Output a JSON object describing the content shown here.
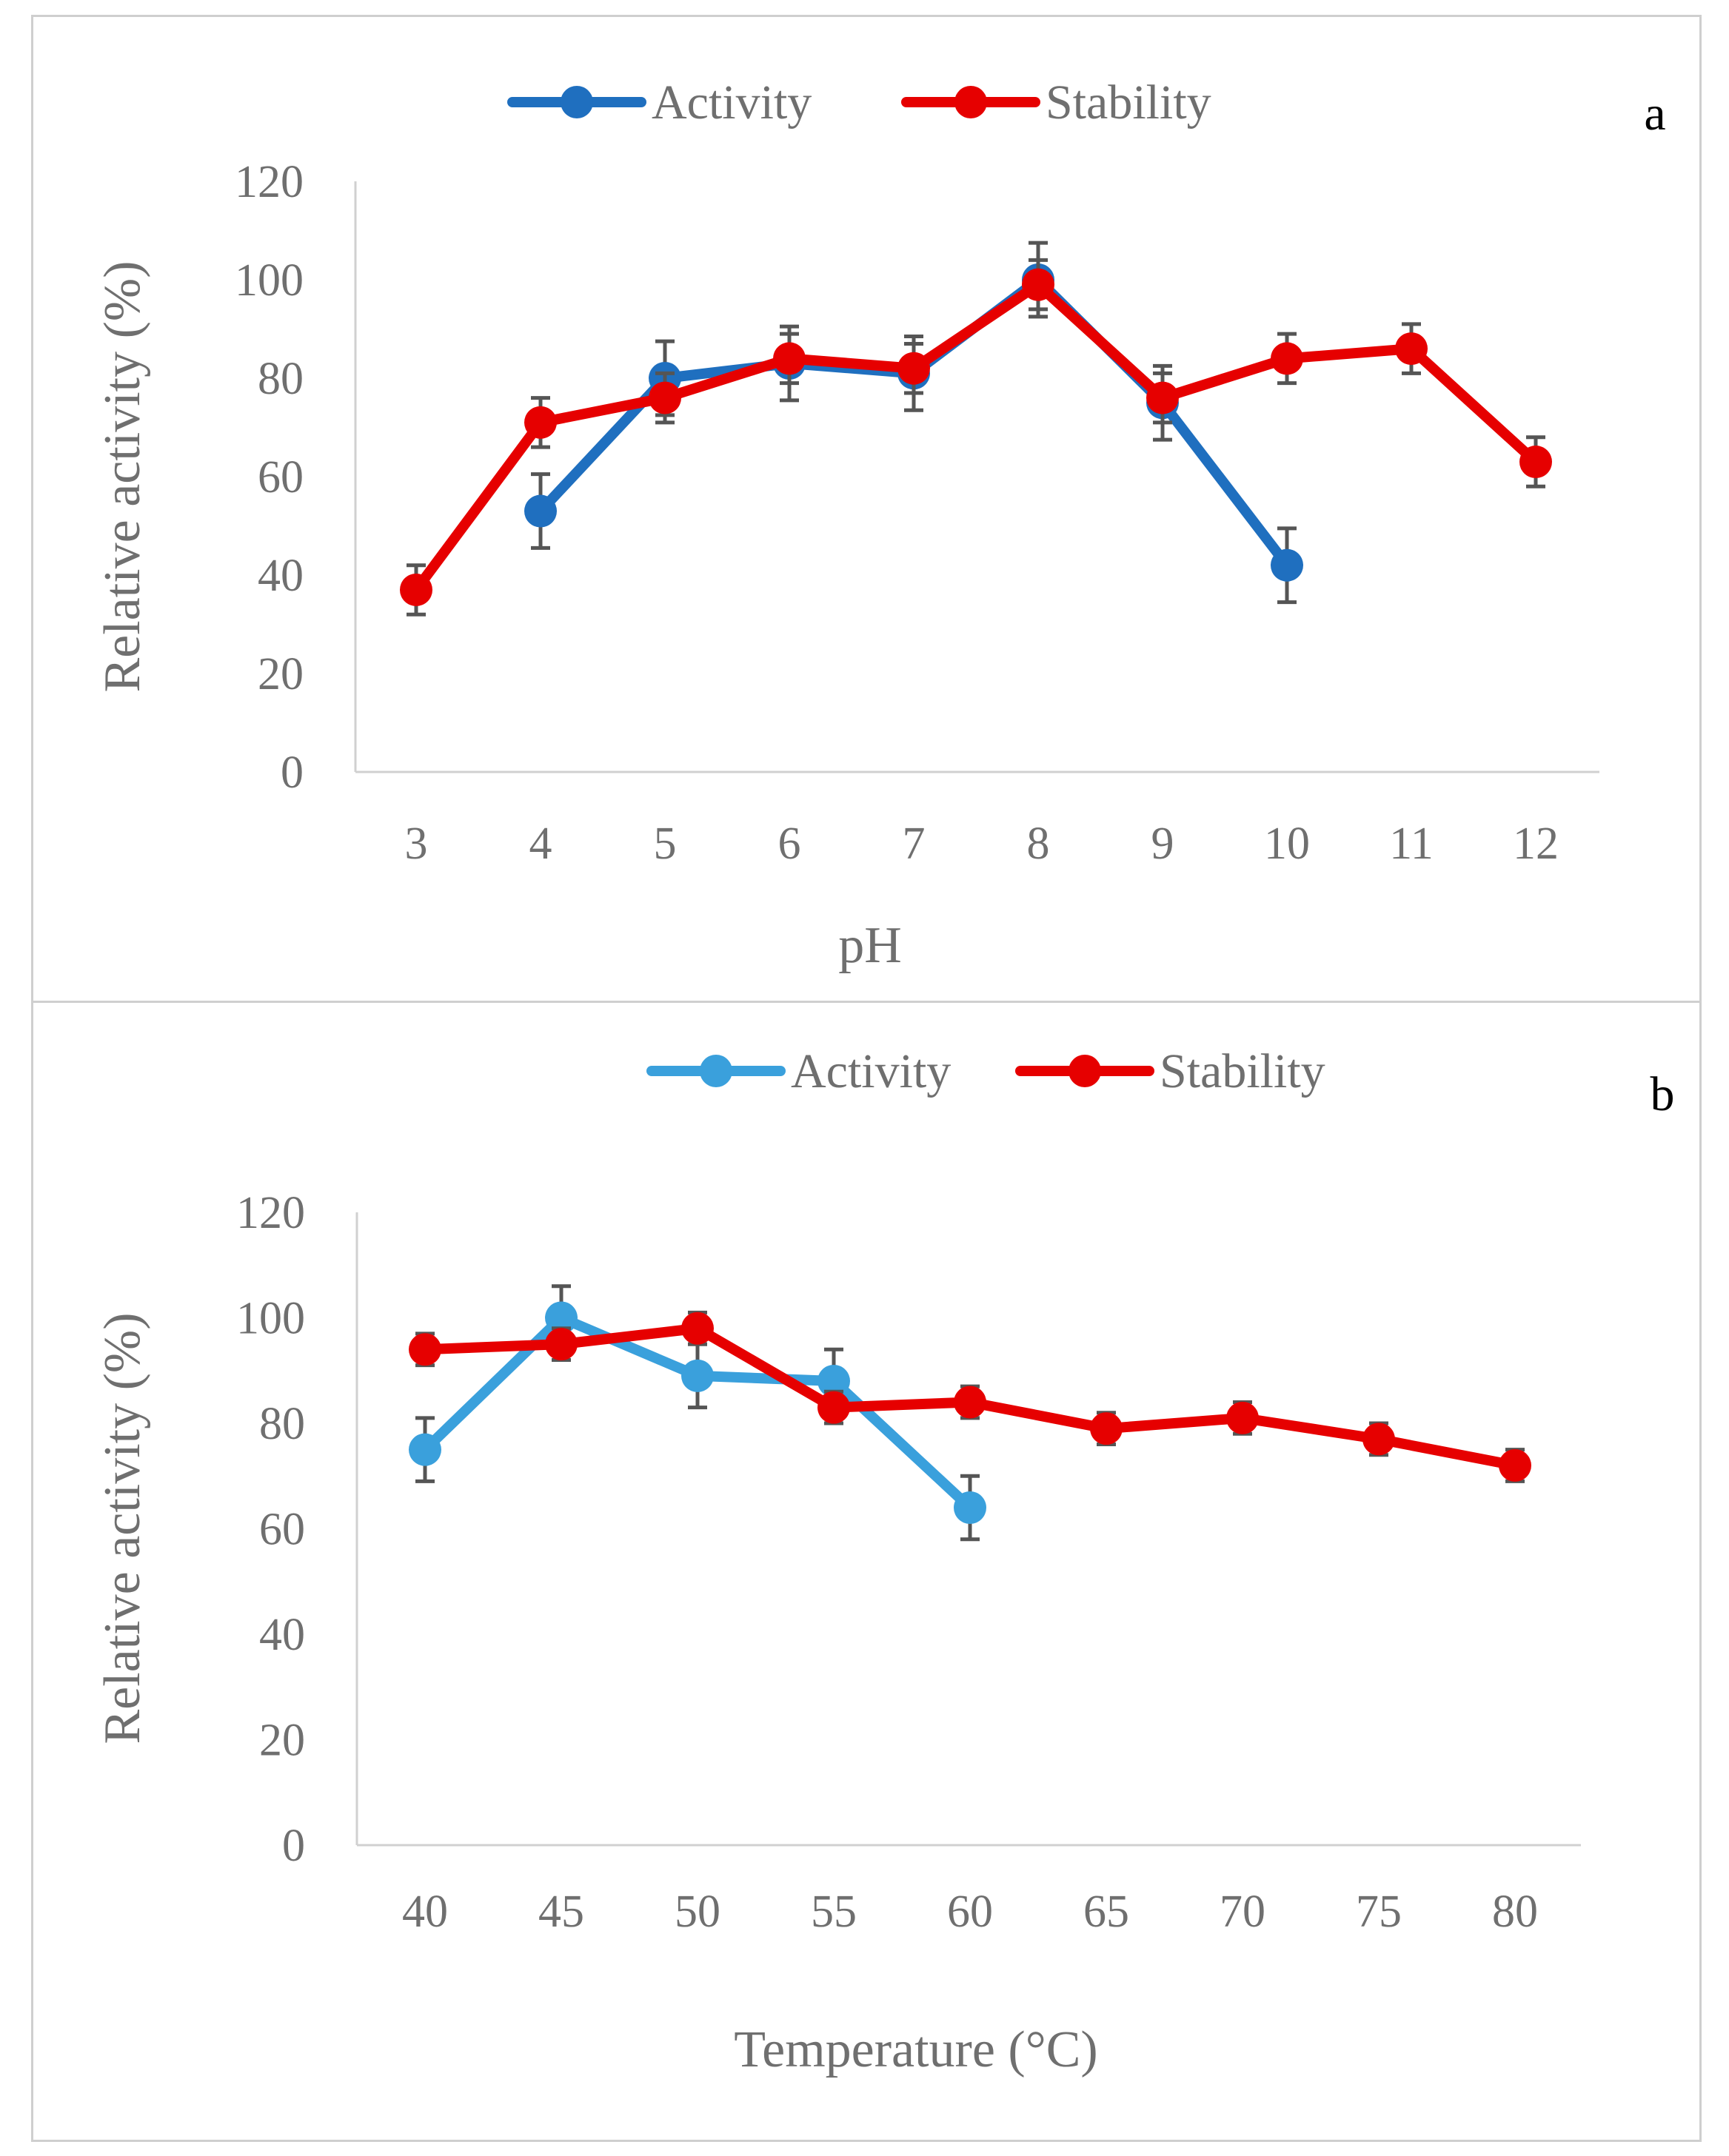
{
  "chart_data": [
    {
      "type": "line",
      "panel_label": "a",
      "xlabel": "pH",
      "ylabel": "Relative activity (%)",
      "categories": [
        "3",
        "4",
        "5",
        "6",
        "7",
        "8",
        "9",
        "10",
        "11",
        "12"
      ],
      "yticks": [
        "0",
        "20",
        "40",
        "60",
        "80",
        "100",
        "120"
      ],
      "ylim": [
        0,
        120
      ],
      "grid": false,
      "legend_position": "top",
      "series": [
        {
          "name": "Activity",
          "color": "#1f6fbf",
          "values": [
            null,
            53,
            80,
            83,
            81,
            100,
            75,
            42,
            null,
            null
          ],
          "errors": [
            null,
            7.5,
            7.5,
            7.5,
            7.5,
            7.5,
            7.5,
            7.5,
            null,
            null
          ]
        },
        {
          "name": "Stability",
          "color": "#e60000",
          "values": [
            37,
            71,
            76,
            84,
            82,
            99,
            76,
            84,
            86,
            63
          ],
          "errors": [
            5,
            5,
            5,
            5,
            5,
            5,
            5,
            5,
            5,
            5
          ]
        }
      ]
    },
    {
      "type": "line",
      "panel_label": "b",
      "xlabel": "Temperature (°C)",
      "ylabel": "Relative activity (%)",
      "categories": [
        "40",
        "45",
        "50",
        "55",
        "60",
        "65",
        "70",
        "75",
        "80"
      ],
      "yticks": [
        "0",
        "20",
        "40",
        "60",
        "80",
        "100",
        "120"
      ],
      "ylim": [
        0,
        120
      ],
      "grid": false,
      "legend_position": "top",
      "series": [
        {
          "name": "Activity",
          "color": "#3aa0dc",
          "values": [
            75,
            100,
            89,
            88,
            64,
            null,
            null,
            null,
            null
          ],
          "errors": [
            6,
            6,
            6,
            6,
            6,
            null,
            null,
            null,
            null
          ]
        },
        {
          "name": "Stability",
          "color": "#e60000",
          "values": [
            94,
            95,
            98,
            83,
            84,
            79,
            81,
            77,
            72
          ],
          "errors": [
            3,
            3,
            3,
            3,
            3,
            3,
            3,
            3,
            3
          ]
        }
      ]
    }
  ]
}
